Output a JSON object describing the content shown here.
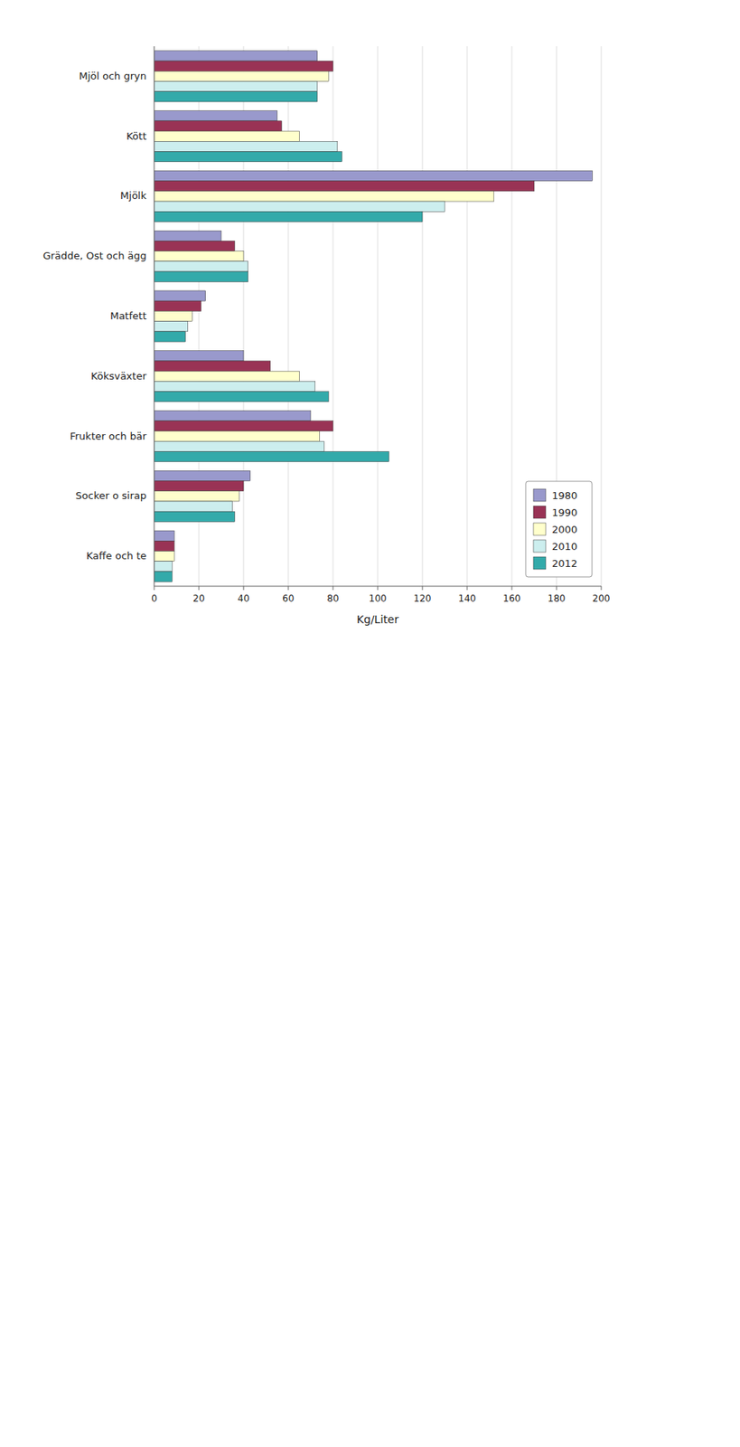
{
  "chart_data": {
    "type": "bar",
    "orientation": "horizontal",
    "categories": [
      "Mjöl och gryn",
      "Kött",
      "Mjölk",
      "Grädde, Ost och ägg",
      "Matfett",
      "Köksväxter",
      "Frukter och bär",
      "Socker o sirap",
      "Kaffe och te"
    ],
    "series": [
      {
        "name": "1980",
        "color": "#9999cc",
        "values": [
          73,
          55,
          196,
          30,
          23,
          40,
          70,
          43,
          9
        ]
      },
      {
        "name": "1990",
        "color": "#993355",
        "values": [
          80,
          57,
          170,
          36,
          21,
          52,
          80,
          40,
          9
        ]
      },
      {
        "name": "2000",
        "color": "#ffffcc",
        "values": [
          78,
          65,
          152,
          40,
          17,
          65,
          74,
          38,
          9
        ]
      },
      {
        "name": "2010",
        "color": "#cceeee",
        "values": [
          73,
          82,
          130,
          42,
          15,
          72,
          76,
          35,
          8
        ]
      },
      {
        "name": "2012",
        "color": "#33aaaa",
        "values": [
          73,
          84,
          120,
          42,
          14,
          78,
          105,
          36,
          8
        ]
      }
    ],
    "xlabel": "Kg/Liter",
    "xlim": [
      0,
      200
    ],
    "xticks": [
      0,
      20,
      40,
      60,
      80,
      100,
      120,
      140,
      160,
      180,
      200
    ],
    "grid": true,
    "legend": "lower right"
  }
}
